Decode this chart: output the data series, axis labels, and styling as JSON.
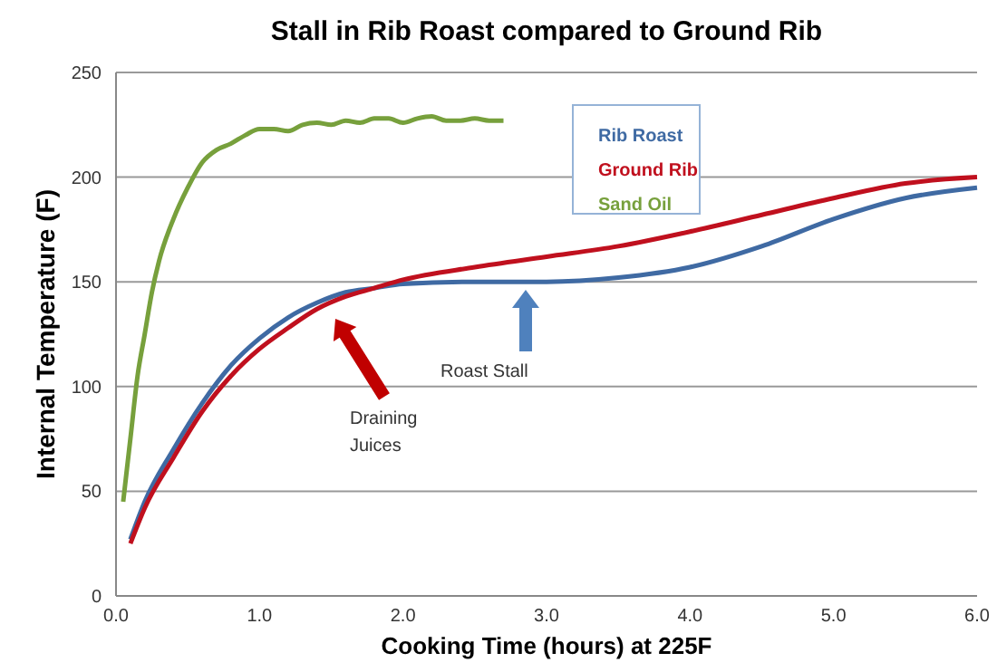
{
  "chart_data": {
    "type": "line",
    "title": "Stall in Rib Roast compared to Ground Rib",
    "xlabel": "Cooking Time (hours) at 225F",
    "ylabel": "Internal Temperature (F)",
    "xlim": [
      0,
      6
    ],
    "xticks": [
      {
        "value": 0,
        "label": "0.0"
      },
      {
        "value": 1,
        "label": "1.0"
      },
      {
        "value": 2,
        "label": "2.0"
      },
      {
        "value": 3,
        "label": "3.0"
      },
      {
        "value": 4,
        "label": "4.0"
      },
      {
        "value": 5,
        "label": "5.0"
      },
      {
        "value": 6,
        "label": "6.0"
      }
    ],
    "ylim": [
      0,
      250
    ],
    "yticks": [
      0,
      50,
      100,
      150,
      200,
      250
    ],
    "grid": "y",
    "legend": "top right",
    "marker": "none",
    "line_style": "solid",
    "series": [
      {
        "name": "Rib Roast",
        "color": "#3f6aa3",
        "x": [
          0.1,
          0.2,
          0.4,
          0.6,
          0.8,
          1.0,
          1.2,
          1.4,
          1.6,
          1.8,
          2.0,
          2.5,
          3.0,
          3.5,
          4.0,
          4.5,
          5.0,
          5.5,
          6.0
        ],
        "values": [
          27,
          45,
          70,
          92,
          110,
          123,
          133,
          140,
          145,
          147,
          149,
          150,
          150,
          152,
          157,
          167,
          180,
          190,
          195
        ]
      },
      {
        "name": "Ground Rib",
        "color": "#c0101e",
        "x": [
          0.1,
          0.2,
          0.4,
          0.6,
          0.8,
          1.0,
          1.2,
          1.4,
          1.6,
          1.8,
          2.0,
          2.5,
          3.0,
          3.5,
          4.0,
          4.5,
          5.0,
          5.5,
          6.0
        ],
        "values": [
          25,
          42,
          66,
          88,
          105,
          118,
          128,
          137,
          143,
          147,
          151,
          157,
          162,
          167,
          174,
          182,
          190,
          197,
          200
        ]
      },
      {
        "name": "Sand Oil",
        "color": "#77a03c",
        "x": [
          0.05,
          0.1,
          0.15,
          0.2,
          0.25,
          0.3,
          0.4,
          0.5,
          0.6,
          0.7,
          0.8,
          0.9,
          1.0,
          1.1,
          1.2,
          1.3,
          1.4,
          1.5,
          1.6,
          1.7,
          1.8,
          1.9,
          2.0,
          2.1,
          2.2,
          2.3,
          2.4,
          2.5,
          2.6,
          2.7
        ],
        "values": [
          45,
          75,
          105,
          125,
          145,
          160,
          180,
          195,
          207,
          213,
          216,
          220,
          223,
          223,
          222,
          225,
          226,
          225,
          227,
          226,
          228,
          228,
          226,
          228,
          229,
          227,
          227,
          228,
          227,
          227
        ]
      }
    ],
    "annotations": [
      "Draining Juices",
      "Roast Stall"
    ]
  }
}
